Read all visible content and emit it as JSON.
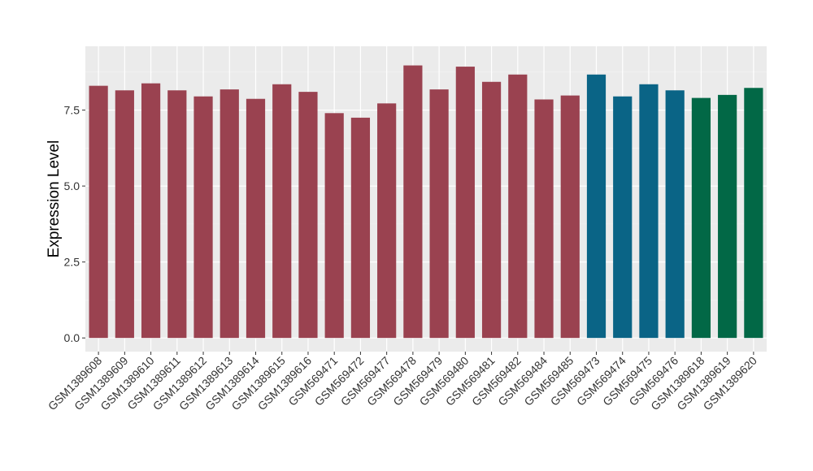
{
  "chart_data": {
    "type": "bar",
    "title": "",
    "xlabel": "",
    "ylabel": "Expression Level",
    "ylim": [
      -0.45,
      9.6
    ],
    "yticks": [
      0.0,
      2.5,
      5.0,
      7.5
    ],
    "ytick_labels": [
      "0.0",
      "2.5",
      "5.0",
      "7.5"
    ],
    "grid": true,
    "legend": "none",
    "categories": [
      "GSM1389608",
      "GSM1389609",
      "GSM1389610",
      "GSM1389611",
      "GSM1389612",
      "GSM1389613",
      "GSM1389614",
      "GSM1389615",
      "GSM1389616",
      "GSM569471",
      "GSM569472",
      "GSM569477",
      "GSM569478",
      "GSM569479",
      "GSM569480",
      "GSM569481",
      "GSM569482",
      "GSM569484",
      "GSM569485",
      "GSM569473",
      "GSM569474",
      "GSM569475",
      "GSM569476",
      "GSM1389618",
      "GSM1389619",
      "GSM1389620"
    ],
    "values": [
      8.3,
      8.15,
      8.38,
      8.15,
      7.95,
      8.18,
      7.87,
      8.35,
      8.1,
      7.4,
      7.25,
      7.72,
      8.97,
      8.18,
      8.93,
      8.43,
      8.67,
      7.85,
      7.98,
      8.67,
      7.95,
      8.35,
      8.15,
      7.9,
      8.0,
      8.23
    ],
    "bar_colors": [
      "#9a4250",
      "#9a4250",
      "#9a4250",
      "#9a4250",
      "#9a4250",
      "#9a4250",
      "#9a4250",
      "#9a4250",
      "#9a4250",
      "#9a4250",
      "#9a4250",
      "#9a4250",
      "#9a4250",
      "#9a4250",
      "#9a4250",
      "#9a4250",
      "#9a4250",
      "#9a4250",
      "#9a4250",
      "#0a6486",
      "#0a6486",
      "#0a6486",
      "#0a6486",
      "#026846",
      "#026846",
      "#026846"
    ]
  },
  "colors": {
    "panel_background": "#ebebeb",
    "grid_major": "#ffffff",
    "grid_minor": "#f5f5f5",
    "tick": "#333333"
  }
}
